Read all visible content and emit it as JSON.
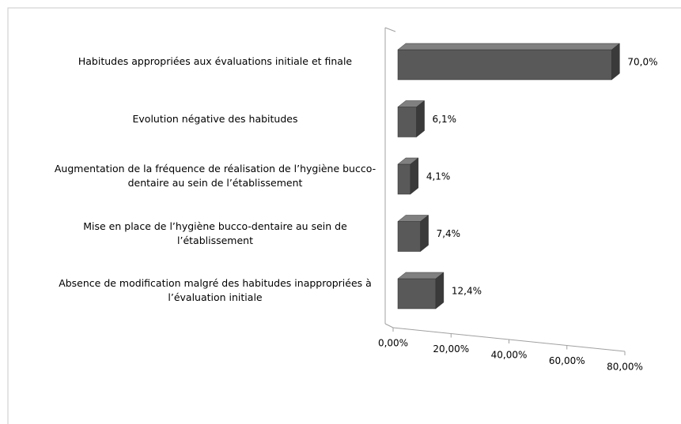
{
  "chart_data": {
    "type": "bar",
    "orientation": "horizontal",
    "categories": [
      "Habitudes appropriées aux évaluations initiale et finale",
      "Evolution négative des habitudes",
      "Augmentation de la fréquence de réalisation de l’hygiène bucco-dentaire au sein de l’établissement",
      "Mise en place de l’hygiène bucco-dentaire au sein de l’établissement",
      "Absence de modification malgré des habitudes inappropriées à l’évaluation initiale"
    ],
    "values": [
      70.0,
      6.1,
      4.1,
      7.4,
      12.4
    ],
    "value_labels": [
      "70,0%",
      "6,1%",
      "4,1%",
      "7,4%",
      "12,4%"
    ],
    "color": "#595959",
    "xlim": [
      0,
      80
    ],
    "xticks": [
      {
        "value": 0,
        "label": "0,00%"
      },
      {
        "value": 20,
        "label": "20,00%"
      },
      {
        "value": 40,
        "label": "40,00%"
      },
      {
        "value": 60,
        "label": "60,00%"
      },
      {
        "value": 80,
        "label": "80,00%"
      }
    ]
  }
}
